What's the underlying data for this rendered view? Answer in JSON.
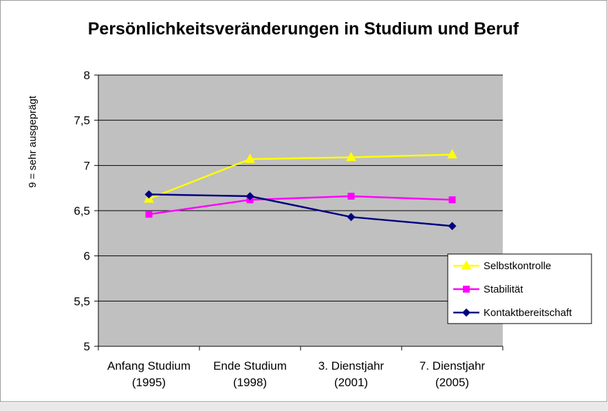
{
  "chart_data": {
    "type": "line",
    "title": "Persönlichkeitsveränderungen in Studium und Beruf",
    "xlabel": "",
    "ylabel": "9 = sehr ausgeprägt",
    "ylim": [
      5,
      8
    ],
    "yticks": [
      "5",
      "5,5",
      "6",
      "6,5",
      "7",
      "7,5",
      "8"
    ],
    "ytick_values": [
      5,
      5.5,
      6,
      6.5,
      7,
      7.5,
      8
    ],
    "categories": [
      [
        "Anfang Studium",
        "(1995)"
      ],
      [
        "Ende Studium",
        "(1998)"
      ],
      [
        "3. Dienstjahr",
        "(2001)"
      ],
      [
        "7. Dienstjahr",
        "(2005)"
      ]
    ],
    "series": [
      {
        "name": "Selbstkontrolle",
        "color": "#ffff00",
        "marker": "triangle",
        "values": [
          6.63,
          7.07,
          7.09,
          7.12
        ]
      },
      {
        "name": "Stabilität",
        "color": "#ff00ff",
        "marker": "square",
        "values": [
          6.46,
          6.62,
          6.66,
          6.62
        ]
      },
      {
        "name": "Kontaktbereitschaft",
        "color": "#000080",
        "marker": "diamond",
        "values": [
          6.68,
          6.66,
          6.43,
          6.33
        ]
      }
    ],
    "grid": true,
    "plot_background": "#c0c0c0",
    "legend_position": "right"
  }
}
